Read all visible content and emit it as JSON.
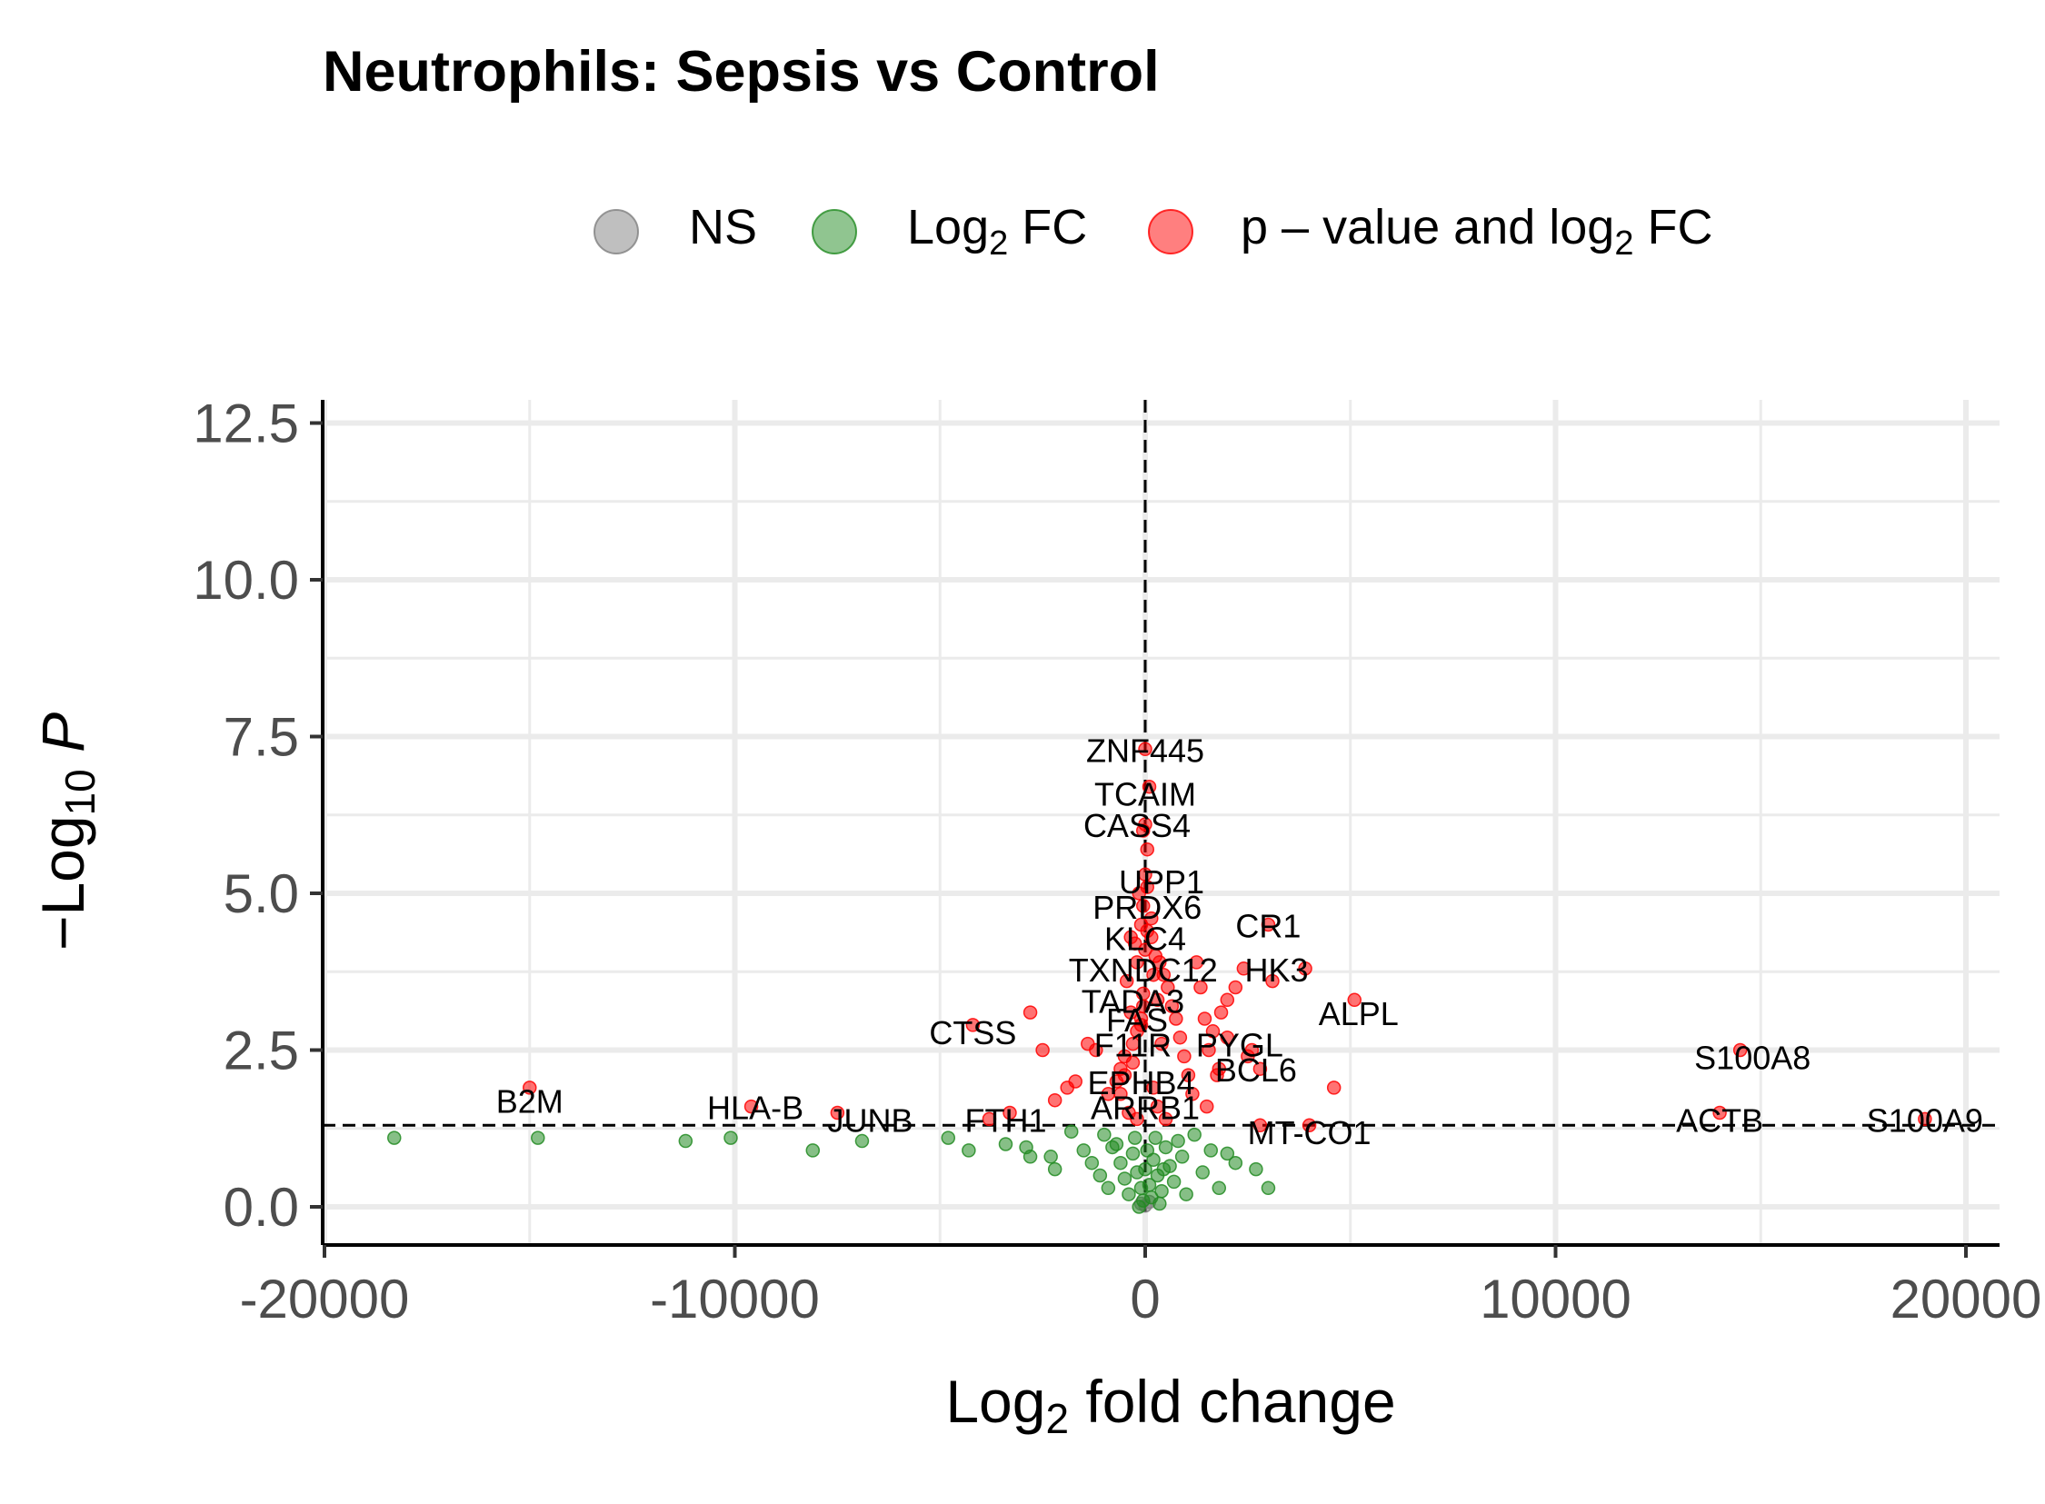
{
  "chart_data": {
    "type": "scatter",
    "title": "Neutrophils: Sepsis vs Control",
    "xlabel": {
      "main": "Log",
      "sub": "2",
      "rest": " fold change"
    },
    "ylabel": {
      "pre": "−Log",
      "sub": "10",
      "post": " P"
    },
    "xlim": [
      -20000,
      20000
    ],
    "ylim": [
      0,
      12.5
    ],
    "x_ticks": [
      "-20000",
      "-10000",
      "0",
      "10000",
      "20000"
    ],
    "y_ticks": [
      "0.0",
      "2.5",
      "5.0",
      "7.5",
      "10.0",
      "12.5"
    ],
    "x_tick_values": [
      -20000,
      -10000,
      0,
      10000,
      20000
    ],
    "y_tick_values": [
      0,
      2.5,
      5,
      7.5,
      10,
      12.5
    ],
    "grid": true,
    "legend_position": "top",
    "thresholds": {
      "pvalue_neglog10": 1.3,
      "log2fc": 0
    },
    "legend": [
      {
        "key": "NS",
        "parts": [
          {
            "t": "NS"
          }
        ],
        "color": "#808080"
      },
      {
        "key": "Log2FC",
        "parts": [
          {
            "t": "Log"
          },
          {
            "t": "2",
            "sub": true
          },
          {
            "t": " FC"
          }
        ],
        "color": "#228B22"
      },
      {
        "key": "both",
        "parts": [
          {
            "t": "p – value and log"
          },
          {
            "t": "2",
            "sub": true
          },
          {
            "t": " FC"
          }
        ],
        "color": "#FF0000"
      }
    ],
    "series": [
      {
        "name": "p – value and log2 FC",
        "color": "#FF0000",
        "points": [
          [
            0,
            7.3
          ],
          [
            100,
            6.7
          ],
          [
            0,
            6.1
          ],
          [
            -50,
            6.0
          ],
          [
            50,
            5.7
          ],
          [
            0,
            5.3
          ],
          [
            50,
            5.1
          ],
          [
            -150,
            5.0
          ],
          [
            -50,
            4.8
          ],
          [
            150,
            4.6
          ],
          [
            -250,
            4.2
          ],
          [
            0,
            4.1
          ],
          [
            -200,
            3.9
          ],
          [
            200,
            3.7
          ],
          [
            -50,
            3.4
          ],
          [
            300,
            3.3
          ],
          [
            -350,
            3.1
          ],
          [
            -100,
            2.9
          ],
          [
            400,
            2.6
          ],
          [
            -300,
            2.3
          ],
          [
            -500,
            2.1
          ],
          [
            200,
            1.9
          ],
          [
            -600,
            1.8
          ],
          [
            -400,
            1.5
          ],
          [
            300,
            1.6
          ],
          [
            -200,
            1.4
          ],
          [
            500,
            1.4
          ],
          [
            1500,
            1.6
          ],
          [
            -900,
            1.8
          ],
          [
            -700,
            2.0
          ],
          [
            -600,
            2.2
          ],
          [
            -500,
            2.4
          ],
          [
            -300,
            2.6
          ],
          [
            -200,
            2.8
          ],
          [
            -100,
            3.0
          ],
          [
            -50,
            3.2
          ],
          [
            -450,
            3.6
          ],
          [
            -350,
            4.3
          ],
          [
            -100,
            4.5
          ],
          [
            50,
            4.4
          ],
          [
            150,
            4.3
          ],
          [
            250,
            4.0
          ],
          [
            350,
            3.9
          ],
          [
            450,
            3.7
          ],
          [
            550,
            3.5
          ],
          [
            650,
            3.2
          ],
          [
            750,
            3.0
          ],
          [
            850,
            2.7
          ],
          [
            950,
            2.4
          ],
          [
            1050,
            2.1
          ],
          [
            1150,
            1.8
          ],
          [
            1250,
            3.9
          ],
          [
            1350,
            3.5
          ],
          [
            1450,
            3.0
          ],
          [
            1550,
            2.5
          ],
          [
            1650,
            2.8
          ],
          [
            1750,
            2.1
          ],
          [
            1850,
            3.1
          ],
          [
            2000,
            3.3
          ],
          [
            2200,
            3.5
          ],
          [
            2400,
            3.8
          ],
          [
            2600,
            2.5
          ],
          [
            2800,
            2.2
          ],
          [
            -1200,
            2.5
          ],
          [
            -1400,
            2.6
          ],
          [
            -1700,
            2.0
          ],
          [
            -1900,
            1.9
          ],
          [
            -2200,
            1.7
          ],
          [
            -2500,
            2.5
          ],
          [
            -2800,
            3.1
          ],
          [
            -3300,
            1.5
          ],
          [
            -3800,
            1.4
          ],
          [
            -4200,
            2.9
          ],
          [
            -7500,
            1.5
          ],
          [
            -9600,
            1.6
          ],
          [
            -15000,
            1.9
          ],
          [
            3000,
            4.5
          ],
          [
            3100,
            3.6
          ],
          [
            3900,
            3.8
          ],
          [
            4600,
            1.9
          ],
          [
            5100,
            3.3
          ],
          [
            2500,
            2.4
          ],
          [
            2000,
            2.7
          ],
          [
            1800,
            2.2
          ],
          [
            4000,
            1.3
          ],
          [
            2800,
            1.3
          ],
          [
            14000,
            1.5
          ],
          [
            14500,
            2.5
          ],
          [
            19000,
            1.4
          ]
        ]
      },
      {
        "name": "Log2 FC",
        "color": "#228B22",
        "points": [
          [
            -18300,
            1.1
          ],
          [
            -14800,
            1.1
          ],
          [
            -11200,
            1.05
          ],
          [
            -10100,
            1.1
          ],
          [
            -8100,
            0.9
          ],
          [
            -6900,
            1.05
          ],
          [
            -4800,
            1.1
          ],
          [
            -4300,
            0.9
          ],
          [
            -3400,
            1.0
          ],
          [
            -2900,
            0.95
          ],
          [
            -2800,
            0.8
          ],
          [
            -2300,
            0.8
          ],
          [
            -2200,
            0.6
          ],
          [
            -1800,
            1.2
          ],
          [
            -1500,
            0.9
          ],
          [
            -1300,
            0.7
          ],
          [
            -1100,
            0.5
          ],
          [
            -900,
            0.3
          ],
          [
            -700,
            1.0
          ],
          [
            -600,
            0.7
          ],
          [
            -500,
            0.45
          ],
          [
            -400,
            0.2
          ],
          [
            -300,
            0.85
          ],
          [
            -200,
            0.55
          ],
          [
            -100,
            0.3
          ],
          [
            -50,
            0.1
          ],
          [
            0,
            0.6
          ],
          [
            50,
            0.9
          ],
          [
            100,
            0.35
          ],
          [
            150,
            0.15
          ],
          [
            200,
            0.75
          ],
          [
            250,
            1.1
          ],
          [
            300,
            0.5
          ],
          [
            400,
            0.25
          ],
          [
            500,
            0.95
          ],
          [
            600,
            0.65
          ],
          [
            700,
            0.4
          ],
          [
            800,
            1.05
          ],
          [
            900,
            0.8
          ],
          [
            1000,
            0.2
          ],
          [
            1200,
            1.15
          ],
          [
            1400,
            0.55
          ],
          [
            1600,
            0.9
          ],
          [
            1800,
            0.3
          ],
          [
            2000,
            0.85
          ],
          [
            2200,
            0.7
          ],
          [
            2700,
            0.6
          ],
          [
            3000,
            0.3
          ],
          [
            -1000,
            1.15
          ],
          [
            -800,
            0.95
          ],
          [
            -250,
            1.1
          ],
          [
            350,
            0.05
          ],
          [
            -150,
            0.0
          ],
          [
            450,
            0.6
          ]
        ]
      },
      {
        "name": "NS",
        "color": "#808080",
        "points": [
          [
            0,
            0.02
          ],
          [
            -100,
            0.05
          ],
          [
            100,
            0.08
          ]
        ]
      }
    ],
    "labels": [
      {
        "text": "ZNF445",
        "x": 0,
        "y": 7.3
      },
      {
        "text": "TCAIM",
        "x": 0,
        "y": 6.6
      },
      {
        "text": "CASS4",
        "x": -200,
        "y": 6.1
      },
      {
        "text": "UPP1",
        "x": 400,
        "y": 5.2
      },
      {
        "text": "PRDX6",
        "x": 50,
        "y": 4.8
      },
      {
        "text": "CR1",
        "x": 3000,
        "y": 4.5
      },
      {
        "text": "KLC4",
        "x": 0,
        "y": 4.3
      },
      {
        "text": "HK3",
        "x": 3200,
        "y": 3.8
      },
      {
        "text": "TXNDC12",
        "x": -50,
        "y": 3.8
      },
      {
        "text": "TADA3",
        "x": -300,
        "y": 3.3
      },
      {
        "text": "ALPL",
        "x": 5200,
        "y": 3.1
      },
      {
        "text": "CTSS",
        "x": -4200,
        "y": 2.8
      },
      {
        "text": "FAS",
        "x": -200,
        "y": 3.0
      },
      {
        "text": "PYGL",
        "x": 2300,
        "y": 2.6
      },
      {
        "text": "F11R",
        "x": -300,
        "y": 2.6
      },
      {
        "text": "S100A8",
        "x": 14800,
        "y": 2.4
      },
      {
        "text": "BCL6",
        "x": 2700,
        "y": 2.2
      },
      {
        "text": "EPHB4",
        "x": -100,
        "y": 2.0
      },
      {
        "text": "B2M",
        "x": -15000,
        "y": 1.7
      },
      {
        "text": "HLA-B",
        "x": -9500,
        "y": 1.6
      },
      {
        "text": "ARRB1",
        "x": 0,
        "y": 1.6
      },
      {
        "text": "ACTB",
        "x": 14000,
        "y": 1.4
      },
      {
        "text": "JUNB",
        "x": -6700,
        "y": 1.4
      },
      {
        "text": "FTH1",
        "x": -3400,
        "y": 1.4
      },
      {
        "text": "S100A9",
        "x": 19000,
        "y": 1.4
      },
      {
        "text": "MT-CO1",
        "x": 4000,
        "y": 1.2
      }
    ]
  }
}
